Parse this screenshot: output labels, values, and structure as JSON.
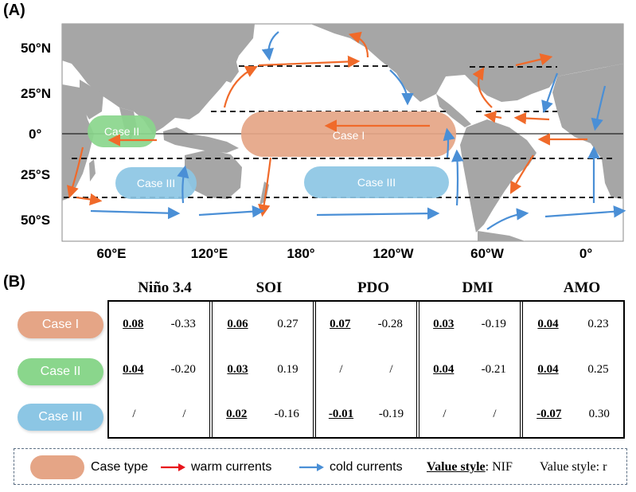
{
  "panel_a_label": "(A)",
  "panel_b_label": "(B)",
  "map": {
    "lat_labels": [
      "50°N",
      "25°N",
      "0°",
      "25°S",
      "50°S"
    ],
    "lon_labels": [
      "60°E",
      "120°E",
      "180°",
      "120°W",
      "60°W",
      "0°"
    ],
    "case_regions": [
      {
        "label": "Case I",
        "color": "#e5a586"
      },
      {
        "label": "Case II",
        "color": "#8ad68c"
      },
      {
        "label": "Case III",
        "color": "#8cc6e4"
      },
      {
        "label": "Case III",
        "color": "#8cc6e4"
      }
    ],
    "warm_color": "#f06a2a",
    "cold_color": "#4a8fd6",
    "land_color": "#a6a6a6"
  },
  "table": {
    "columns": [
      "Niño 3.4",
      "SOI",
      "PDO",
      "DMI",
      "AMO"
    ],
    "rows": [
      {
        "case": "Case I",
        "color": "#e5a586",
        "cells": [
          [
            "0.08",
            "-0.33"
          ],
          [
            "0.06",
            "0.27"
          ],
          [
            "0.07",
            "-0.28"
          ],
          [
            "0.03",
            "-0.19"
          ],
          [
            "0.04",
            "0.23"
          ]
        ]
      },
      {
        "case": "Case II",
        "color": "#8ad68c",
        "cells": [
          [
            "0.04",
            "-0.20"
          ],
          [
            "0.03",
            "0.19"
          ],
          [
            "/",
            "/"
          ],
          [
            "0.04",
            "-0.21"
          ],
          [
            "0.04",
            "0.25"
          ]
        ]
      },
      {
        "case": "Case III",
        "color": "#8cc6e4",
        "cells": [
          [
            "/",
            "/"
          ],
          [
            "0.02",
            "-0.16"
          ],
          [
            "-0.01",
            "-0.19"
          ],
          [
            "/",
            "/"
          ],
          [
            "-0.07",
            "0.30"
          ]
        ]
      }
    ]
  },
  "legend": {
    "case_type": "Case type",
    "warm": "warm currents",
    "cold": "cold  currents",
    "nif_label": "Value style",
    "nif_value": ": NIF",
    "r_label": "Value style: r",
    "warm_arrow_color": "#e8141b",
    "cold_arrow_color": "#4a8fd6",
    "case_swatch_color": "#e5a586"
  }
}
